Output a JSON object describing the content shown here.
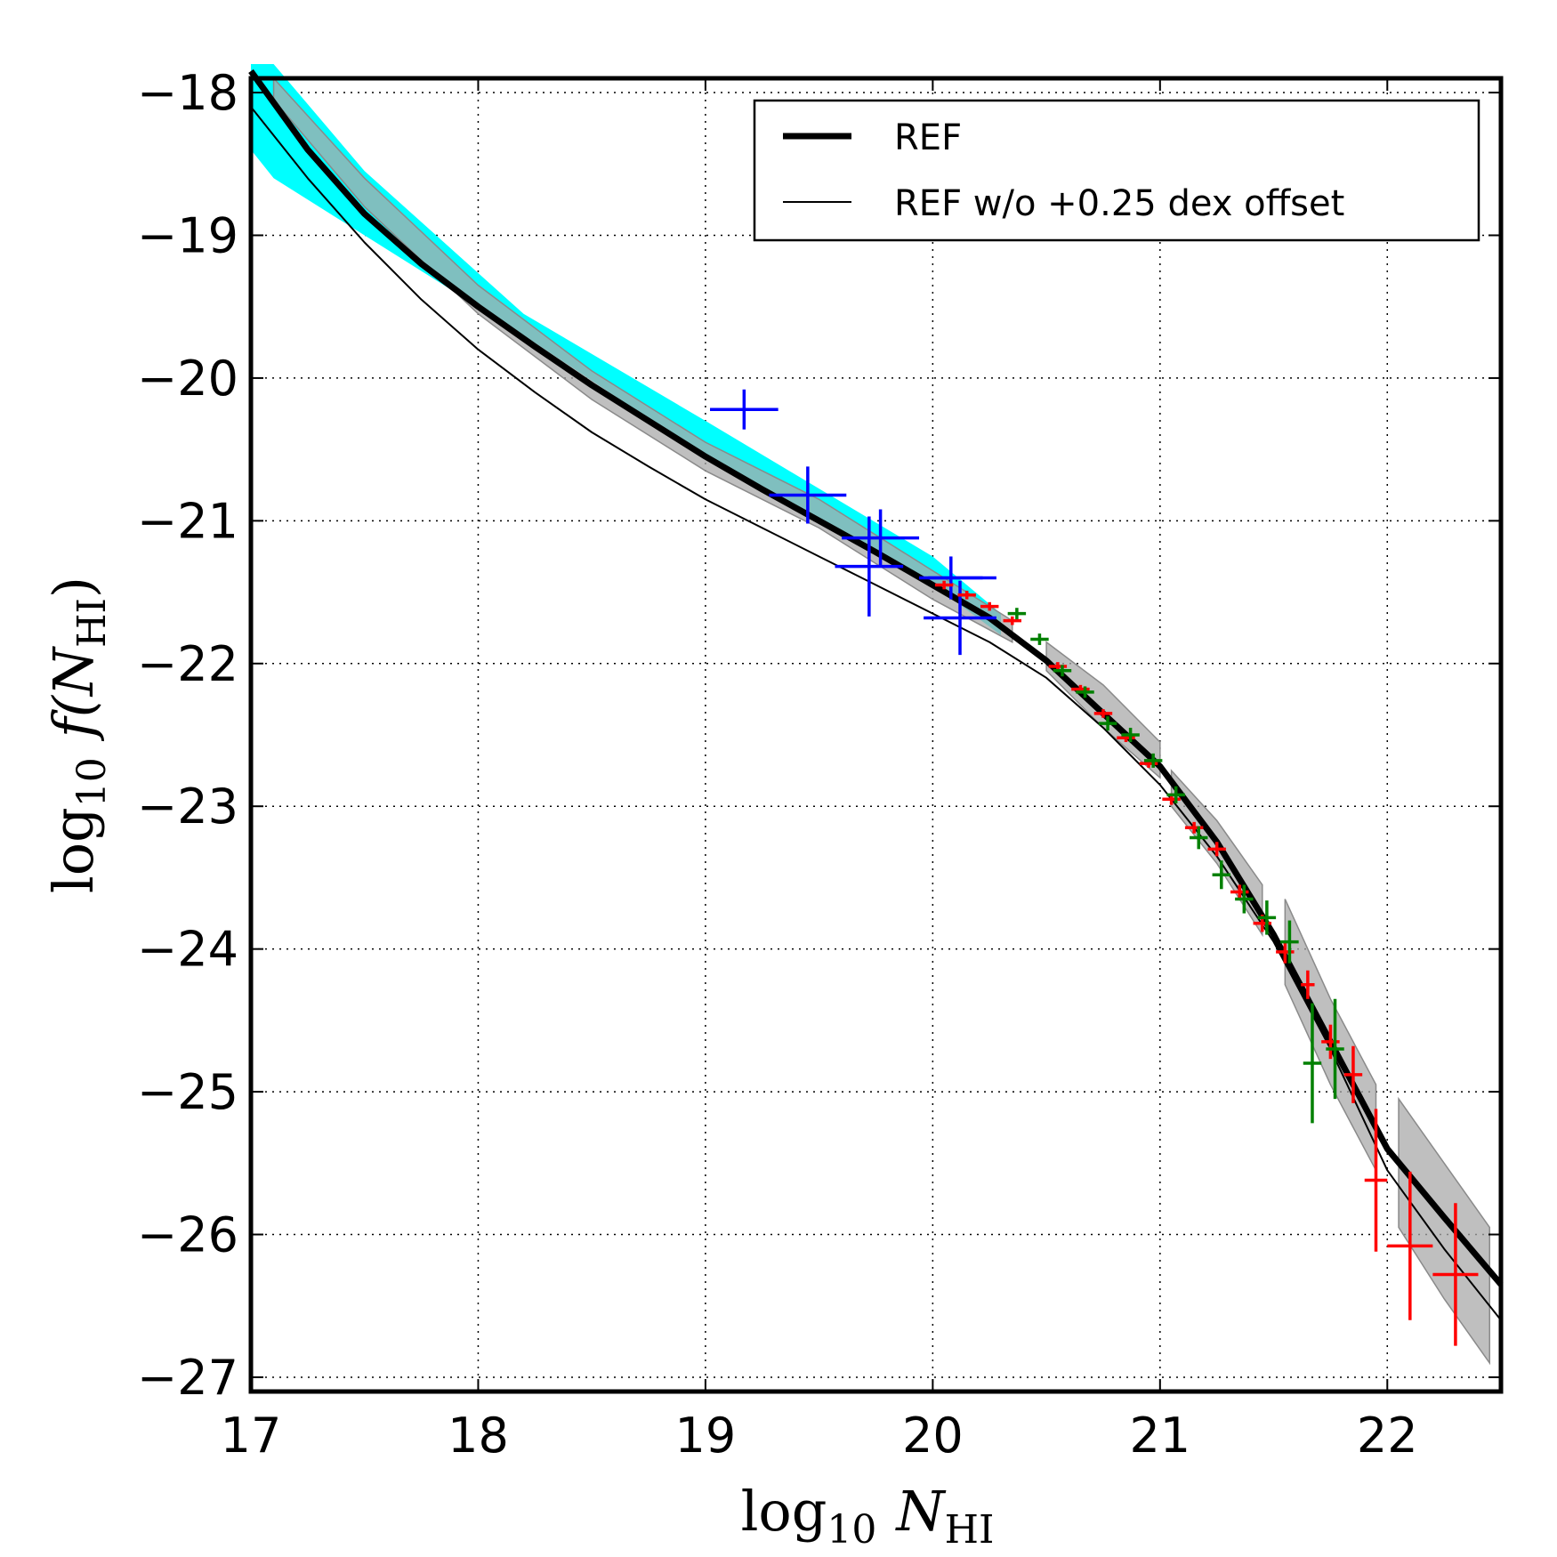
{
  "chart_data": {
    "type": "line",
    "title": "",
    "xlabel": "log10 N_HI",
    "ylabel": "log10 f(N_HI)",
    "xlabel_parts": {
      "main": "log",
      "sub": "10",
      "var": "N",
      "varsub": "HI"
    },
    "ylabel_parts": {
      "main": "log",
      "sub": "10",
      "func": "f(N",
      "varsub": "HI",
      "close": ")"
    },
    "xlim": [
      17,
      22.5
    ],
    "ylim": [
      -27.1,
      -17.9
    ],
    "xticks": [
      17,
      18,
      19,
      20,
      21,
      22
    ],
    "yticks": [
      -18,
      -19,
      -20,
      -21,
      -22,
      -23,
      -24,
      -25,
      -26,
      -27
    ],
    "xtick_labels": [
      "17",
      "18",
      "19",
      "20",
      "21",
      "22"
    ],
    "ytick_labels": [
      "−18",
      "−19",
      "−20",
      "−21",
      "−22",
      "−23",
      "−24",
      "−25",
      "−26",
      "−27"
    ],
    "grid": true,
    "legend_position": "top-right",
    "colors": {
      "cyan_band": "#00ffff",
      "grey_band": "#a9a9a9",
      "ref": "#000000",
      "blue": "#0000ff",
      "green": "#008000",
      "red": "#ff0000"
    },
    "series": [
      {
        "name": "REF",
        "style": "thick",
        "x": [
          17.0,
          17.25,
          17.5,
          17.75,
          18.0,
          18.25,
          18.5,
          18.75,
          19.0,
          19.25,
          19.5,
          19.75,
          20.0,
          20.25,
          20.5,
          20.75,
          21.0,
          21.25,
          21.5,
          21.75,
          22.0,
          22.25,
          22.5
        ],
        "y": [
          -17.85,
          -18.4,
          -18.85,
          -19.2,
          -19.5,
          -19.78,
          -20.05,
          -20.3,
          -20.55,
          -20.78,
          -21.0,
          -21.22,
          -21.45,
          -21.68,
          -21.98,
          -22.35,
          -22.72,
          -23.25,
          -23.9,
          -24.65,
          -25.4,
          -25.88,
          -26.35
        ]
      },
      {
        "name": "REF w/o +0.25 dex offset",
        "style": "thin",
        "x": [
          17.0,
          17.25,
          17.5,
          17.75,
          18.0,
          18.25,
          18.5,
          18.75,
          19.0,
          19.25,
          19.5,
          19.75,
          20.0,
          20.25,
          20.5,
          20.75,
          21.0,
          21.25,
          21.5,
          21.75,
          22.0,
          22.25,
          22.5
        ],
        "y": [
          -18.1,
          -18.6,
          -19.05,
          -19.45,
          -19.8,
          -20.1,
          -20.38,
          -20.62,
          -20.85,
          -21.05,
          -21.25,
          -21.45,
          -21.65,
          -21.85,
          -22.1,
          -22.45,
          -22.85,
          -23.35,
          -23.95,
          -24.7,
          -25.55,
          -26.1,
          -26.6
        ]
      }
    ],
    "bands": [
      {
        "name": "cyan band",
        "color": "cyan_band",
        "x": [
          17.0,
          17.1,
          17.5,
          18.2,
          19.0,
          20.0,
          20.3
        ],
        "upper": [
          -17.8,
          -17.8,
          -18.55,
          -19.55,
          -20.3,
          -21.25,
          -21.65
        ],
        "lower": [
          -18.4,
          -18.6,
          -19.0,
          -19.7,
          -20.55,
          -21.45,
          -21.8
        ]
      },
      {
        "name": "grey band 1",
        "color": "grey_band",
        "x": [
          17.1,
          17.5,
          18.0,
          18.5,
          19.0,
          19.5,
          20.0,
          20.35
        ],
        "upper": [
          -17.9,
          -18.6,
          -19.35,
          -19.95,
          -20.45,
          -20.85,
          -21.35,
          -21.7
        ],
        "lower": [
          -18.05,
          -18.8,
          -19.55,
          -20.15,
          -20.65,
          -21.05,
          -21.55,
          -21.85
        ]
      },
      {
        "name": "grey band 2",
        "color": "grey_band",
        "x": [
          20.5,
          20.75,
          21.0
        ],
        "upper": [
          -21.85,
          -22.15,
          -22.55
        ],
        "lower": [
          -22.05,
          -22.45,
          -22.8
        ]
      },
      {
        "name": "grey band 3",
        "color": "grey_band",
        "x": [
          21.05,
          21.25,
          21.45
        ],
        "upper": [
          -22.75,
          -23.1,
          -23.55
        ],
        "lower": [
          -23.0,
          -23.4,
          -23.9
        ]
      },
      {
        "name": "grey band 4",
        "color": "grey_band",
        "x": [
          21.55,
          21.75,
          21.95
        ],
        "upper": [
          -23.65,
          -24.35,
          -24.95
        ],
        "lower": [
          -24.25,
          -24.95,
          -25.55
        ]
      },
      {
        "name": "grey band 5",
        "color": "grey_band",
        "x": [
          22.05,
          22.25,
          22.45
        ],
        "upper": [
          -25.05,
          -25.5,
          -25.95
        ],
        "lower": [
          -25.95,
          -26.45,
          -26.9
        ]
      }
    ],
    "errorbars": [
      {
        "x": 19.17,
        "y": -20.22,
        "xerr": 0.15,
        "yerr": 0.14,
        "color": "blue"
      },
      {
        "x": 19.45,
        "y": -20.82,
        "xerr": 0.17,
        "yerr": 0.2,
        "color": "blue"
      },
      {
        "x": 19.77,
        "y": -21.12,
        "xerr": 0.17,
        "yerr": 0.2,
        "color": "blue"
      },
      {
        "x": 19.72,
        "y": -21.32,
        "xerr": 0.15,
        "yerr": 0.35,
        "color": "blue"
      },
      {
        "x": 20.08,
        "y": -21.4,
        "xerr": 0.14,
        "yerr": 0.15,
        "color": "blue"
      },
      {
        "x": 20.13,
        "y": -21.4,
        "xerr": 0.15,
        "yerr": 0.0,
        "color": "blue"
      },
      {
        "x": 20.12,
        "y": -21.68,
        "xerr": 0.16,
        "yerr": 0.26,
        "color": "blue"
      },
      {
        "x": 20.05,
        "y": -21.45,
        "xerr": 0.04,
        "yerr": 0.03,
        "color": "red"
      },
      {
        "x": 20.15,
        "y": -21.52,
        "xerr": 0.04,
        "yerr": 0.03,
        "color": "red"
      },
      {
        "x": 20.25,
        "y": -21.6,
        "xerr": 0.04,
        "yerr": 0.03,
        "color": "red"
      },
      {
        "x": 20.35,
        "y": -21.7,
        "xerr": 0.04,
        "yerr": 0.03,
        "color": "red"
      },
      {
        "x": 20.37,
        "y": -21.65,
        "xerr": 0.04,
        "yerr": 0.04,
        "color": "green"
      },
      {
        "x": 20.47,
        "y": -21.83,
        "xerr": 0.04,
        "yerr": 0.04,
        "color": "green"
      },
      {
        "x": 20.55,
        "y": -22.02,
        "xerr": 0.04,
        "yerr": 0.03,
        "color": "red"
      },
      {
        "x": 20.57,
        "y": -22.05,
        "xerr": 0.04,
        "yerr": 0.04,
        "color": "green"
      },
      {
        "x": 20.65,
        "y": -22.18,
        "xerr": 0.04,
        "yerr": 0.03,
        "color": "red"
      },
      {
        "x": 20.67,
        "y": -22.2,
        "xerr": 0.04,
        "yerr": 0.04,
        "color": "green"
      },
      {
        "x": 20.75,
        "y": -22.35,
        "xerr": 0.04,
        "yerr": 0.03,
        "color": "red"
      },
      {
        "x": 20.77,
        "y": -22.42,
        "xerr": 0.04,
        "yerr": 0.05,
        "color": "green"
      },
      {
        "x": 20.85,
        "y": -22.52,
        "xerr": 0.04,
        "yerr": 0.03,
        "color": "red"
      },
      {
        "x": 20.87,
        "y": -22.5,
        "xerr": 0.04,
        "yerr": 0.05,
        "color": "green"
      },
      {
        "x": 20.95,
        "y": -22.7,
        "xerr": 0.04,
        "yerr": 0.03,
        "color": "red"
      },
      {
        "x": 20.97,
        "y": -22.68,
        "xerr": 0.04,
        "yerr": 0.05,
        "color": "green"
      },
      {
        "x": 21.05,
        "y": -22.95,
        "xerr": 0.04,
        "yerr": 0.04,
        "color": "red"
      },
      {
        "x": 21.07,
        "y": -22.92,
        "xerr": 0.04,
        "yerr": 0.06,
        "color": "green"
      },
      {
        "x": 21.15,
        "y": -23.15,
        "xerr": 0.04,
        "yerr": 0.04,
        "color": "red"
      },
      {
        "x": 21.17,
        "y": -23.22,
        "xerr": 0.04,
        "yerr": 0.08,
        "color": "green"
      },
      {
        "x": 21.25,
        "y": -23.3,
        "xerr": 0.04,
        "yerr": 0.05,
        "color": "red"
      },
      {
        "x": 21.27,
        "y": -23.48,
        "xerr": 0.04,
        "yerr": 0.1,
        "color": "green"
      },
      {
        "x": 21.35,
        "y": -23.6,
        "xerr": 0.04,
        "yerr": 0.05,
        "color": "red"
      },
      {
        "x": 21.37,
        "y": -23.65,
        "xerr": 0.04,
        "yerr": 0.1,
        "color": "green"
      },
      {
        "x": 21.45,
        "y": -23.82,
        "xerr": 0.04,
        "yerr": 0.06,
        "color": "red"
      },
      {
        "x": 21.47,
        "y": -23.78,
        "xerr": 0.04,
        "yerr": 0.12,
        "color": "green"
      },
      {
        "x": 21.55,
        "y": -24.02,
        "xerr": 0.04,
        "yerr": 0.08,
        "color": "red"
      },
      {
        "x": 21.57,
        "y": -23.95,
        "xerr": 0.04,
        "yerr": 0.15,
        "color": "green"
      },
      {
        "x": 21.65,
        "y": -24.25,
        "xerr": 0.03,
        "yerr": 0.1,
        "color": "red"
      },
      {
        "x": 21.67,
        "y": -24.8,
        "xerr": 0.04,
        "yerr": 0.42,
        "color": "green"
      },
      {
        "x": 21.75,
        "y": -24.65,
        "xerr": 0.04,
        "yerr": 0.12,
        "color": "red"
      },
      {
        "x": 21.77,
        "y": -24.7,
        "xerr": 0.04,
        "yerr": 0.35,
        "color": "green"
      },
      {
        "x": 21.85,
        "y": -24.88,
        "xerr": 0.04,
        "yerr": 0.2,
        "color": "red"
      },
      {
        "x": 21.95,
        "y": -25.62,
        "xerr": 0.05,
        "yerr": 0.5,
        "color": "red"
      },
      {
        "x": 22.1,
        "y": -26.08,
        "xerr": 0.1,
        "yerr": 0.52,
        "color": "red"
      },
      {
        "x": 22.3,
        "y": -26.28,
        "xerr": 0.1,
        "yerr": 0.5,
        "color": "red"
      }
    ],
    "legend": [
      {
        "label": "REF",
        "style": "thick"
      },
      {
        "label": "REF w/o +0.25 dex offset",
        "style": "thin"
      }
    ]
  }
}
